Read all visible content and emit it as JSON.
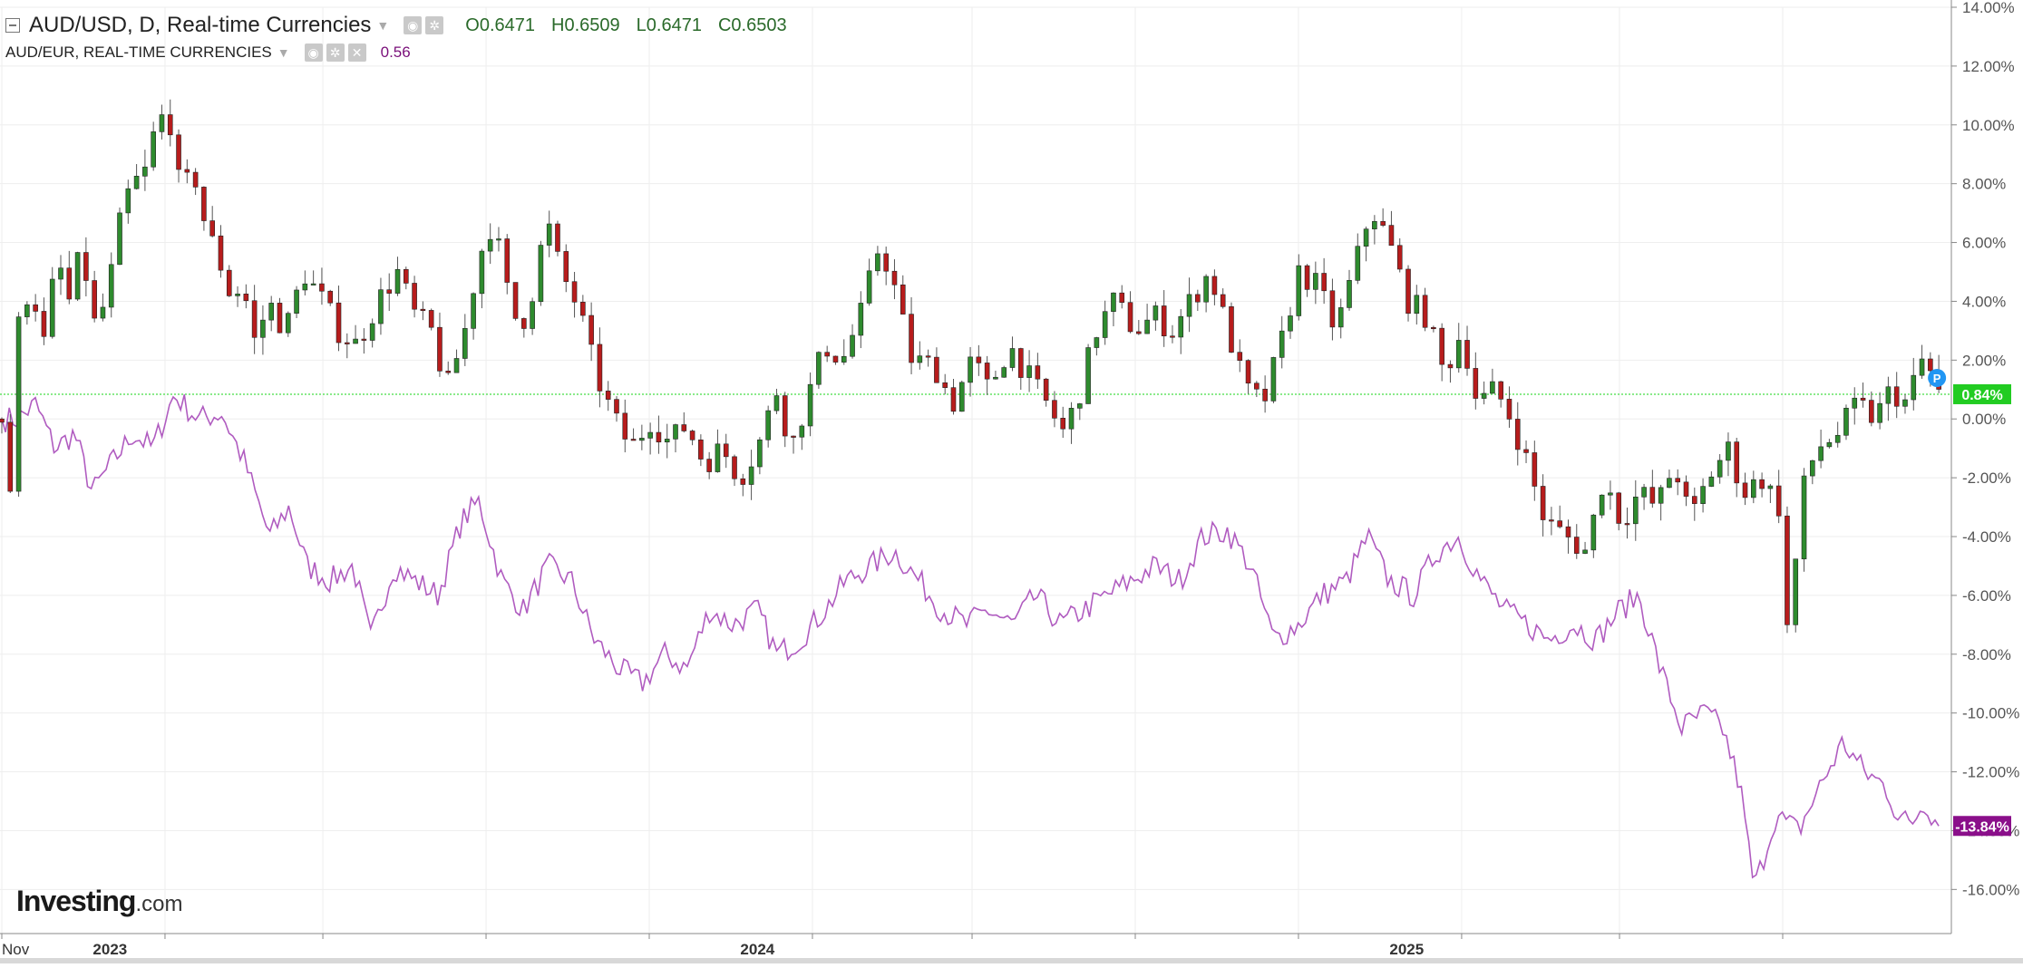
{
  "legend": {
    "main_title": "AUD/USD, D, Real-time Currencies",
    "ohlc": [
      {
        "label": "O",
        "value": "0.6471"
      },
      {
        "label": "H",
        "value": "0.6509"
      },
      {
        "label": "L",
        "value": "0.6471"
      },
      {
        "label": "C",
        "value": "0.6503"
      }
    ],
    "compare_title": "AUD/EUR, REAL-TIME CURRENCIES",
    "compare_value": "0.56"
  },
  "logo": {
    "brand": "Investing",
    "suffix": ".com"
  },
  "colors": {
    "up": "#2e8b2e",
    "down": "#b71c1c",
    "compare_line": "#b05cc0",
    "reference_line": "#44dd44",
    "last_badge_main": "#22cc22",
    "last_badge_compare": "#8a0f8a",
    "grid": "#eeeeee",
    "p_marker": "#2196f3"
  },
  "chart_data": {
    "type": "line",
    "x_axis": {
      "labels": [
        "Nov",
        "2023",
        "2024",
        "2025"
      ],
      "start": "2022-11-01",
      "end": "2025-10-31"
    },
    "y_axis": {
      "ticks": [
        "14.00%",
        "12.00%",
        "10.00%",
        "8.00%",
        "6.00%",
        "4.00%",
        "2.00%",
        "0.00%",
        "-2.00%",
        "-4.00%",
        "-6.00%",
        "-8.00%",
        "-10.00%",
        "-12.00%",
        "-14.00%",
        "-16.00%"
      ],
      "range": [
        -17.5,
        14
      ],
      "unit": "%"
    },
    "grid": true,
    "series": [
      {
        "name": "AUD/USD, D, Real-time Currencies",
        "kind": "candlestick",
        "points": [
          [
            "2022-11-01",
            0.0
          ],
          [
            "2022-11-06",
            -2.5
          ],
          [
            "2022-11-11",
            3.8
          ],
          [
            "2022-11-18",
            4.5
          ],
          [
            "2022-11-25",
            2.5
          ],
          [
            "2022-12-02",
            5.5
          ],
          [
            "2022-12-09",
            4.0
          ],
          [
            "2022-12-16",
            5.8
          ],
          [
            "2022-12-23",
            3.2
          ],
          [
            "2022-12-30",
            4.0
          ],
          [
            "2023-01-06",
            6.5
          ],
          [
            "2023-01-13",
            8.0
          ],
          [
            "2023-01-20",
            8.2
          ],
          [
            "2023-01-27",
            10.0
          ],
          [
            "2023-02-03",
            10.5
          ],
          [
            "2023-02-10",
            7.5
          ],
          [
            "2023-02-17",
            8.5
          ],
          [
            "2023-02-24",
            6.5
          ],
          [
            "2023-03-03",
            5.5
          ],
          [
            "2023-03-10",
            4.2
          ],
          [
            "2023-03-17",
            4.5
          ],
          [
            "2023-03-24",
            2.5
          ],
          [
            "2023-03-31",
            4.0
          ],
          [
            "2023-04-10",
            3.0
          ],
          [
            "2023-04-20",
            5.0
          ],
          [
            "2023-05-01",
            4.0
          ],
          [
            "2023-05-10",
            3.0
          ],
          [
            "2023-05-20",
            2.5
          ],
          [
            "2023-06-01",
            4.0
          ],
          [
            "2023-06-12",
            5.0
          ],
          [
            "2023-06-22",
            3.5
          ],
          [
            "2023-07-01",
            3.0
          ],
          [
            "2023-07-10",
            1.0
          ],
          [
            "2023-07-20",
            3.0
          ],
          [
            "2023-07-28",
            5.5
          ],
          [
            "2023-08-05",
            6.8
          ],
          [
            "2023-08-12",
            4.5
          ],
          [
            "2023-08-20",
            3.0
          ],
          [
            "2023-08-28",
            4.5
          ],
          [
            "2023-09-04",
            6.8
          ],
          [
            "2023-09-12",
            5.0
          ],
          [
            "2023-09-22",
            3.8
          ],
          [
            "2023-10-02",
            1.5
          ],
          [
            "2023-10-12",
            0.0
          ],
          [
            "2023-10-22",
            -1.0
          ],
          [
            "2023-11-02",
            0.0
          ],
          [
            "2023-11-12",
            -0.8
          ],
          [
            "2023-11-22",
            -0.2
          ],
          [
            "2023-12-02",
            -1.5
          ],
          [
            "2023-12-12",
            -1.0
          ],
          [
            "2023-12-22",
            -2.0
          ],
          [
            "2024-01-01",
            -1.0
          ],
          [
            "2024-01-12",
            1.0
          ],
          [
            "2024-01-20",
            -1.0
          ],
          [
            "2024-01-28",
            0.5
          ],
          [
            "2024-02-08",
            2.5
          ],
          [
            "2024-02-18",
            2.0
          ],
          [
            "2024-02-28",
            3.5
          ],
          [
            "2024-03-10",
            6.0
          ],
          [
            "2024-03-18",
            4.5
          ],
          [
            "2024-03-28",
            2.0
          ],
          [
            "2024-04-10",
            1.8
          ],
          [
            "2024-04-20",
            0.5
          ],
          [
            "2024-05-01",
            2.0
          ],
          [
            "2024-05-10",
            1.0
          ],
          [
            "2024-05-22",
            2.5
          ],
          [
            "2024-06-01",
            1.5
          ],
          [
            "2024-06-12",
            0.5
          ],
          [
            "2024-06-22",
            -0.5
          ],
          [
            "2024-07-01",
            1.0
          ],
          [
            "2024-07-10",
            3.0
          ],
          [
            "2024-07-20",
            4.0
          ],
          [
            "2024-08-01",
            3.0
          ],
          [
            "2024-08-12",
            3.5
          ],
          [
            "2024-08-22",
            3.0
          ],
          [
            "2024-09-01",
            4.0
          ],
          [
            "2024-09-12",
            5.0
          ],
          [
            "2024-09-22",
            3.0
          ],
          [
            "2024-10-02",
            1.0
          ],
          [
            "2024-10-12",
            0.5
          ],
          [
            "2024-10-22",
            2.5
          ],
          [
            "2024-11-01",
            5.0
          ],
          [
            "2024-11-12",
            4.5
          ],
          [
            "2024-11-22",
            3.0
          ],
          [
            "2024-12-02",
            5.0
          ],
          [
            "2024-12-12",
            7.2
          ],
          [
            "2024-12-22",
            6.0
          ],
          [
            "2025-01-02",
            4.0
          ],
          [
            "2025-01-12",
            3.5
          ],
          [
            "2025-01-22",
            1.5
          ],
          [
            "2025-02-01",
            3.0
          ],
          [
            "2025-02-10",
            0.5
          ],
          [
            "2025-02-20",
            1.0
          ],
          [
            "2025-03-01",
            0.0
          ],
          [
            "2025-03-10",
            -1.5
          ],
          [
            "2025-03-20",
            -3.5
          ],
          [
            "2025-04-01",
            -4.0
          ],
          [
            "2025-04-12",
            -4.5
          ],
          [
            "2025-04-22",
            -2.0
          ],
          [
            "2025-05-02",
            -3.5
          ],
          [
            "2025-05-12",
            -2.5
          ],
          [
            "2025-05-22",
            -3.0
          ],
          [
            "2025-06-01",
            -1.5
          ],
          [
            "2025-06-10",
            -3.5
          ],
          [
            "2025-06-20",
            -2.0
          ],
          [
            "2025-07-01",
            -1.0
          ],
          [
            "2025-07-10",
            -2.5
          ],
          [
            "2025-07-20",
            -2.0
          ],
          [
            "2025-07-30",
            -3.0
          ],
          [
            "2025-08-04",
            -7.5
          ],
          [
            "2025-08-12",
            -2.5
          ],
          [
            "2025-08-20",
            -1.0
          ],
          [
            "2025-09-01",
            -0.5
          ],
          [
            "2025-09-12",
            0.5
          ],
          [
            "2025-09-22",
            0.0
          ],
          [
            "2025-10-01",
            1.0
          ],
          [
            "2025-10-10",
            0.5
          ],
          [
            "2025-10-18",
            2.0
          ],
          [
            "2025-10-24",
            1.5
          ],
          [
            "2025-10-28",
            0.84
          ]
        ],
        "last_value_label": "0.84%"
      },
      {
        "name": "AUD/EUR, REAL-TIME CURRENCIES",
        "kind": "line",
        "points": [
          [
            "2022-11-01",
            0.0
          ],
          [
            "2022-11-10",
            0.0
          ],
          [
            "2022-11-20",
            0.5
          ],
          [
            "2022-12-01",
            -1.0
          ],
          [
            "2022-12-12",
            -0.5
          ],
          [
            "2022-12-22",
            -2.5
          ],
          [
            "2023-01-02",
            -1.5
          ],
          [
            "2023-01-14",
            -0.5
          ],
          [
            "2023-01-25",
            -1.0
          ],
          [
            "2023-02-06",
            0.8
          ],
          [
            "2023-02-20",
            0.0
          ],
          [
            "2023-03-05",
            0.2
          ],
          [
            "2023-03-18",
            -1.5
          ],
          [
            "2023-04-01",
            -4.0
          ],
          [
            "2023-04-12",
            -3.0
          ],
          [
            "2023-04-22",
            -5.0
          ],
          [
            "2023-05-05",
            -5.5
          ],
          [
            "2023-05-18",
            -5.0
          ],
          [
            "2023-05-28",
            -7.5
          ],
          [
            "2023-06-10",
            -5.0
          ],
          [
            "2023-06-22",
            -5.5
          ],
          [
            "2023-07-05",
            -6.0
          ],
          [
            "2023-07-18",
            -3.5
          ],
          [
            "2023-07-28",
            -2.8
          ],
          [
            "2023-08-10",
            -5.5
          ],
          [
            "2023-08-22",
            -6.5
          ],
          [
            "2023-09-05",
            -5.0
          ],
          [
            "2023-09-18",
            -5.5
          ],
          [
            "2023-10-01",
            -7.5
          ],
          [
            "2023-10-15",
            -8.5
          ],
          [
            "2023-10-28",
            -9.0
          ],
          [
            "2023-11-10",
            -8.0
          ],
          [
            "2023-11-22",
            -8.5
          ],
          [
            "2023-12-05",
            -6.5
          ],
          [
            "2023-12-18",
            -7.0
          ],
          [
            "2024-01-01",
            -6.5
          ],
          [
            "2024-01-12",
            -8.0
          ],
          [
            "2024-01-25",
            -7.5
          ],
          [
            "2024-02-08",
            -6.5
          ],
          [
            "2024-02-20",
            -5.5
          ],
          [
            "2024-03-05",
            -5.0
          ],
          [
            "2024-03-18",
            -4.5
          ],
          [
            "2024-04-01",
            -5.5
          ],
          [
            "2024-04-14",
            -6.5
          ],
          [
            "2024-04-28",
            -7.0
          ],
          [
            "2024-05-10",
            -6.5
          ],
          [
            "2024-05-24",
            -7.0
          ],
          [
            "2024-06-06",
            -6.0
          ],
          [
            "2024-06-20",
            -7.0
          ],
          [
            "2024-07-03",
            -6.5
          ],
          [
            "2024-07-16",
            -6.0
          ],
          [
            "2024-07-30",
            -5.5
          ],
          [
            "2024-08-12",
            -5.0
          ],
          [
            "2024-08-26",
            -5.5
          ],
          [
            "2024-09-08",
            -4.0
          ],
          [
            "2024-09-22",
            -3.8
          ],
          [
            "2024-10-05",
            -5.0
          ],
          [
            "2024-10-18",
            -7.5
          ],
          [
            "2024-11-01",
            -7.0
          ],
          [
            "2024-11-14",
            -6.0
          ],
          [
            "2024-11-28",
            -5.5
          ],
          [
            "2024-12-10",
            -4.0
          ],
          [
            "2024-12-22",
            -5.5
          ],
          [
            "2025-01-05",
            -6.0
          ],
          [
            "2025-01-18",
            -4.5
          ],
          [
            "2025-01-30",
            -4.0
          ],
          [
            "2025-02-12",
            -5.5
          ],
          [
            "2025-02-25",
            -6.5
          ],
          [
            "2025-03-10",
            -7.0
          ],
          [
            "2025-03-22",
            -7.5
          ],
          [
            "2025-04-05",
            -7.0
          ],
          [
            "2025-04-18",
            -7.5
          ],
          [
            "2025-05-01",
            -6.5
          ],
          [
            "2025-05-12",
            -6.0
          ],
          [
            "2025-05-24",
            -8.5
          ],
          [
            "2025-06-05",
            -10.5
          ],
          [
            "2025-06-18",
            -10.0
          ],
          [
            "2025-06-28",
            -10.5
          ],
          [
            "2025-07-08",
            -12.5
          ],
          [
            "2025-07-16",
            -16.0
          ],
          [
            "2025-07-28",
            -13.5
          ],
          [
            "2025-08-10",
            -14.0
          ],
          [
            "2025-08-22",
            -12.5
          ],
          [
            "2025-09-04",
            -11.0
          ],
          [
            "2025-09-16",
            -12.0
          ],
          [
            "2025-09-28",
            -12.5
          ],
          [
            "2025-10-05",
            -13.5
          ],
          [
            "2025-10-12",
            -13.8
          ],
          [
            "2025-10-20",
            -13.0
          ],
          [
            "2025-10-28",
            -13.84
          ]
        ],
        "last_value_label": "-13.84%"
      }
    ],
    "reference_line": {
      "value": 0.84
    },
    "marker": {
      "label": "P"
    }
  }
}
